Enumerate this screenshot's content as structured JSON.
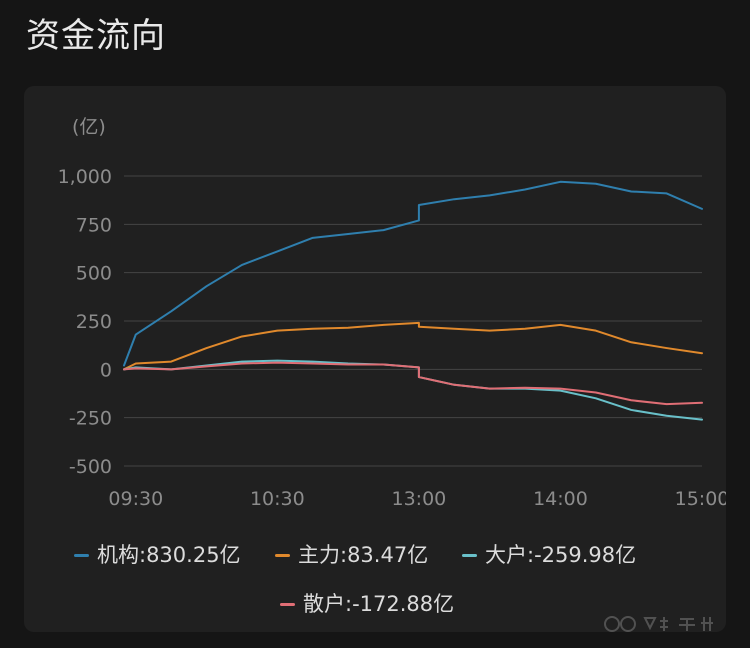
{
  "header": {
    "title": "资金流向"
  },
  "chart_data": {
    "type": "line",
    "title": "",
    "xlabel": "",
    "ylabel": "",
    "unit_label": "(亿)",
    "x": [
      "09:25",
      "09:30",
      "09:45",
      "10:00",
      "10:15",
      "10:30",
      "10:45",
      "11:00",
      "11:15",
      "11:30",
      "13:00",
      "13:15",
      "13:30",
      "13:45",
      "14:00",
      "14:15",
      "14:30",
      "14:45",
      "15:00"
    ],
    "x_tick_labels": [
      "09:30",
      "10:30",
      "13:00",
      "14:00",
      "15:00"
    ],
    "ylim": [
      -500,
      1000
    ],
    "y_ticks": [
      -500,
      -250,
      0,
      250,
      500,
      750,
      1000
    ],
    "y_tick_labels": [
      "-500",
      "-250",
      "0",
      "250",
      "500",
      "750",
      "1,000"
    ],
    "grid": true,
    "legend_position": "bottom",
    "series": [
      {
        "name": "机构",
        "legend_label": "机构:830.25亿",
        "color": "#2f7fae",
        "values": [
          20,
          180,
          300,
          430,
          540,
          610,
          680,
          700,
          720,
          770,
          850,
          880,
          900,
          930,
          970,
          960,
          920,
          910,
          830
        ]
      },
      {
        "name": "主力",
        "legend_label": "主力:83.47亿",
        "color": "#e0892c",
        "values": [
          0,
          30,
          40,
          110,
          170,
          200,
          210,
          215,
          230,
          240,
          220,
          210,
          200,
          210,
          230,
          200,
          140,
          110,
          83
        ]
      },
      {
        "name": "大户",
        "legend_label": "大户:-259.98亿",
        "color": "#69c0c9",
        "values": [
          0,
          10,
          0,
          20,
          40,
          45,
          40,
          30,
          25,
          10,
          -40,
          -80,
          -100,
          -100,
          -110,
          -150,
          -210,
          -240,
          -260
        ]
      },
      {
        "name": "散户",
        "legend_label": "散户:-172.88亿",
        "color": "#e06e75",
        "values": [
          0,
          5,
          0,
          15,
          30,
          35,
          30,
          25,
          25,
          10,
          -40,
          -80,
          -100,
          -95,
          -100,
          -120,
          -160,
          -180,
          -173
        ]
      }
    ]
  }
}
